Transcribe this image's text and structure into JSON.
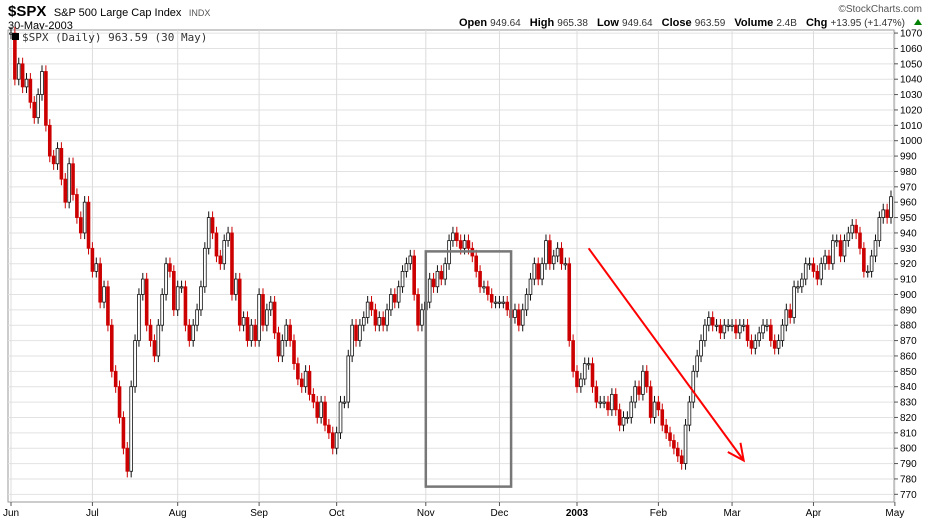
{
  "header": {
    "symbol": "$SPX",
    "name": "S&P 500 Large Cap Index",
    "exchange": "INDX",
    "date": "30-May-2003",
    "brand": "©StockCharts.com",
    "quote": {
      "open_label": "Open",
      "open": "949.64",
      "high_label": "High",
      "high": "965.38",
      "low_label": "Low",
      "low": "949.64",
      "close_label": "Close",
      "close": "963.59",
      "volume_label": "Volume",
      "volume": "2.4B",
      "chg_label": "Chg",
      "chg": "+13.95 (+1.47%)"
    }
  },
  "chart_data": {
    "type": "line",
    "legend": "$SPX (Daily) 963.59 (30 May)",
    "ylim": [
      765,
      1072
    ],
    "y_ticks": [
      770,
      780,
      790,
      800,
      810,
      820,
      830,
      840,
      850,
      860,
      870,
      880,
      890,
      900,
      910,
      920,
      930,
      940,
      950,
      960,
      970,
      980,
      990,
      1000,
      1010,
      1020,
      1030,
      1040,
      1050,
      1060,
      1070
    ],
    "x_ticks": [
      {
        "label": "Jun",
        "i": 0
      },
      {
        "label": "Jul",
        "i": 21
      },
      {
        "label": "Aug",
        "i": 43
      },
      {
        "label": "Sep",
        "i": 64
      },
      {
        "label": "Oct",
        "i": 84
      },
      {
        "label": "Nov",
        "i": 107
      },
      {
        "label": "Dec",
        "i": 126
      },
      {
        "label": "2003",
        "i": 146
      },
      {
        "label": "Feb",
        "i": 167
      },
      {
        "label": "Mar",
        "i": 186
      },
      {
        "label": "Apr",
        "i": 207
      },
      {
        "label": "May",
        "i": 228
      }
    ],
    "series": [
      {
        "values": [
          1070,
          1040,
          1050,
          1035,
          1040,
          1025,
          1015,
          1030,
          1045,
          1010,
          990,
          985,
          995,
          975,
          960,
          985,
          965,
          950,
          940,
          960,
          930,
          915,
          920,
          895,
          905,
          880,
          850,
          840,
          820,
          800,
          785,
          840,
          870,
          900,
          910,
          880,
          870,
          860,
          880,
          900,
          920,
          915,
          890,
          905,
          905,
          880,
          870,
          880,
          890,
          905,
          930,
          950,
          940,
          925,
          920,
          935,
          940,
          900,
          910,
          880,
          885,
          870,
          880,
          870,
          900,
          880,
          890,
          895,
          875,
          860,
          870,
          880,
          870,
          855,
          845,
          840,
          850,
          835,
          830,
          820,
          830,
          815,
          810,
          800,
          810,
          830,
          830,
          860,
          880,
          870,
          880,
          885,
          895,
          890,
          880,
          885,
          880,
          890,
          900,
          895,
          905,
          915,
          920,
          925,
          900,
          880,
          890,
          895,
          910,
          905,
          915,
          910,
          920,
          935,
          940,
          935,
          930,
          935,
          930,
          925,
          915,
          905,
          905,
          900,
          895,
          895,
          895,
          895,
          890,
          885,
          890,
          880,
          890,
          900,
          910,
          920,
          910,
          920,
          935,
          920,
          925,
          930,
          920,
          920,
          870,
          850,
          840,
          845,
          855,
          855,
          840,
          830,
          830,
          830,
          825,
          835,
          825,
          815,
          820,
          820,
          830,
          840,
          835,
          850,
          840,
          820,
          830,
          825,
          815,
          810,
          805,
          800,
          795,
          790,
          815,
          830,
          850,
          860,
          870,
          880,
          885,
          880,
          880,
          875,
          880,
          880,
          880,
          875,
          880,
          880,
          870,
          865,
          870,
          875,
          880,
          880,
          870,
          865,
          870,
          880,
          890,
          885,
          905,
          905,
          910,
          920,
          920,
          915,
          910,
          920,
          925,
          920,
          935,
          935,
          925,
          935,
          940,
          945,
          940,
          930,
          915,
          915,
          925,
          935,
          950,
          955,
          950,
          963.59
        ]
      }
    ],
    "annotations": [
      {
        "type": "box",
        "x0": 107,
        "x1": 129,
        "y0": 775,
        "y1": 928
      },
      {
        "type": "arrow",
        "x0": 149,
        "y0": 930,
        "x1": 189,
        "y1": 792
      }
    ]
  }
}
